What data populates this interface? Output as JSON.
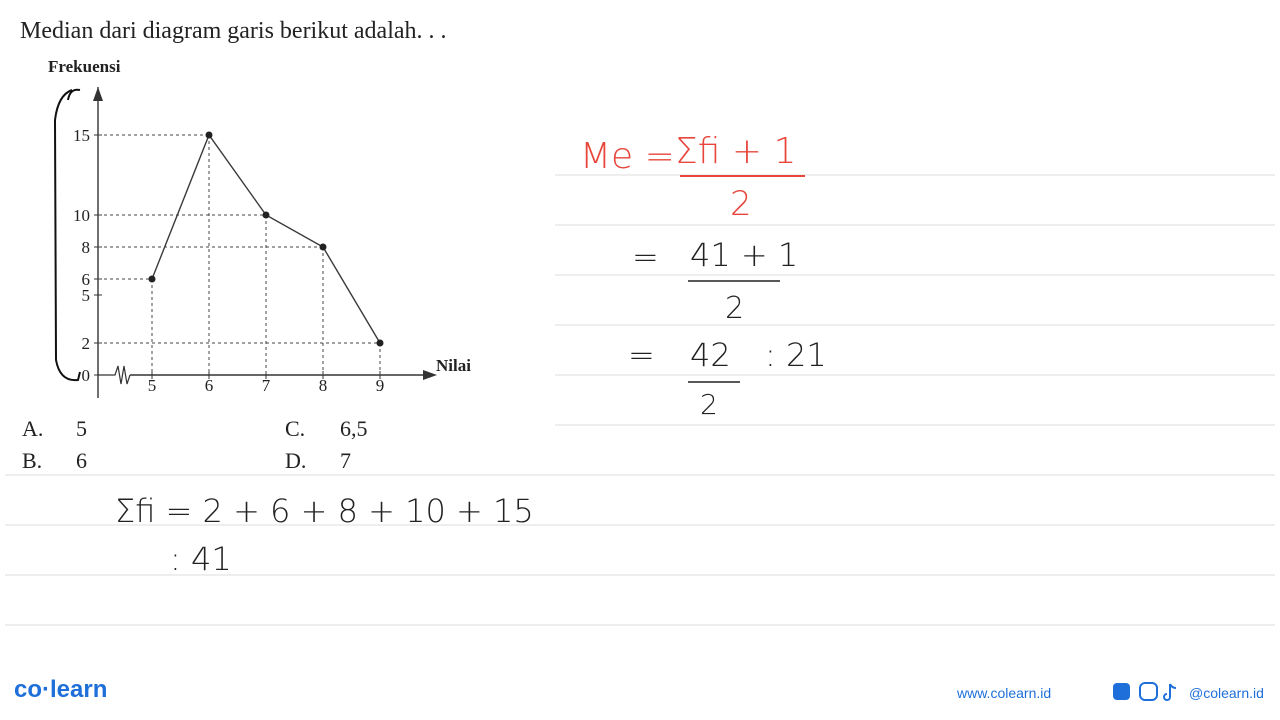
{
  "question": "Median dari diagram garis berikut adalah. . .",
  "chart_data": {
    "type": "line",
    "y_label": "Frekuensi",
    "x_label": "Nilai",
    "x": [
      5,
      6,
      7,
      8,
      9
    ],
    "values": [
      6,
      15,
      10,
      8,
      2
    ],
    "color": "#3a3a3a",
    "xlim": [
      4,
      10
    ],
    "ylim": [
      0,
      18
    ],
    "xticks": [
      5,
      6,
      7,
      8,
      9
    ],
    "yticks": [
      0,
      2,
      5,
      6,
      8,
      10,
      15
    ],
    "guides": true
  },
  "options": [
    {
      "letter": "A.",
      "text": "5"
    },
    {
      "letter": "B.",
      "text": "6"
    },
    {
      "letter": "C.",
      "text": "6,5"
    },
    {
      "letter": "D.",
      "text": "7"
    }
  ],
  "work": {
    "median_lhs": "Me =",
    "median_num": "Σfi + 1",
    "median_den": "2",
    "step2_eq": "=",
    "step2_num": "41 + 1",
    "step2_den": "2",
    "step3_eq": "=",
    "step3_num": "42",
    "step3_den": "2",
    "step3_result": ": 21",
    "sum_line": "Σfi = 2 + 6 + 8 + 10 + 15",
    "sum_result": ": 41"
  },
  "footer": {
    "brand": "co·learn",
    "website": "www.colearn.id",
    "social": "@colearn.id"
  }
}
